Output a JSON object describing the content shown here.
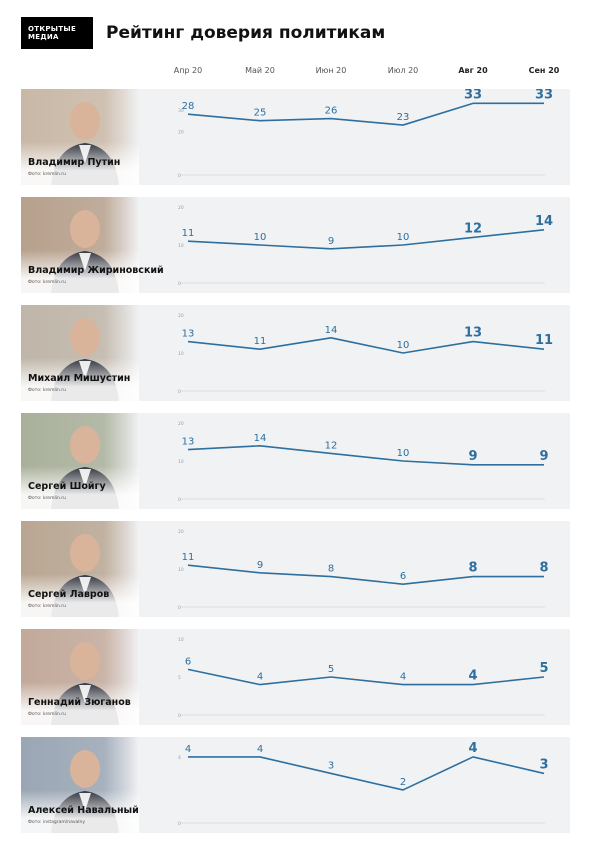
{
  "brand": {
    "line1": "ОТКРЫТЫЕ",
    "line2": "МЕДИА"
  },
  "title": "Рейтинг доверия политикам",
  "months": [
    "Апр 20",
    "Май 20",
    "Июн 20",
    "Июл 20",
    "Авг 20",
    "Сен 20"
  ],
  "colors": {
    "line": "#2e6f9e",
    "label": "#2e6f9e",
    "panel": "#f1f2f4"
  },
  "politicians": [
    {
      "name": "Владимир Путин",
      "credit": "Фото: kremlin.ru"
    },
    {
      "name": "Владимир Жириновский",
      "credit": "Фото: kremlin.ru"
    },
    {
      "name": "Михаил Мишустин",
      "credit": "Фото: kremlin.ru"
    },
    {
      "name": "Сергей Шойгу",
      "credit": "Фото: kremlin.ru"
    },
    {
      "name": "Сергей Лавров",
      "credit": "Фото: kremlin.ru"
    },
    {
      "name": "Геннадий Зюганов",
      "credit": "Фото: kremlin.ru"
    },
    {
      "name": "Алексей Навальный",
      "credit": "Фото: instagram/navalny"
    }
  ],
  "chart_data": [
    {
      "type": "line",
      "x": [
        "Апр 20",
        "Май 20",
        "Июн 20",
        "Июл 20",
        "Авг 20",
        "Сен 20"
      ],
      "series": [
        {
          "name": "Владимир Путин",
          "values": [
            28,
            25,
            26,
            23,
            33,
            33
          ]
        }
      ],
      "yticks": [
        "30",
        "20",
        "0"
      ],
      "ylim": [
        0,
        35
      ],
      "grid": false
    },
    {
      "type": "line",
      "x": [
        "Апр 20",
        "Май 20",
        "Июн 20",
        "Июл 20",
        "Авг 20",
        "Сен 20"
      ],
      "series": [
        {
          "name": "Владимир Жириновский",
          "values": [
            11,
            10,
            9,
            10,
            12,
            14
          ]
        }
      ],
      "yticks": [
        "20",
        "10",
        "0"
      ],
      "ylim": [
        0,
        20
      ],
      "grid": false
    },
    {
      "type": "line",
      "x": [
        "Апр 20",
        "Май 20",
        "Июн 20",
        "Июл 20",
        "Авг 20",
        "Сен 20"
      ],
      "series": [
        {
          "name": "Михаил Мишустин",
          "values": [
            13,
            11,
            14,
            10,
            13,
            11
          ]
        }
      ],
      "yticks": [
        "20",
        "10",
        "0"
      ],
      "ylim": [
        0,
        20
      ],
      "grid": false
    },
    {
      "type": "line",
      "x": [
        "Апр 20",
        "Май 20",
        "Июн 20",
        "Июл 20",
        "Авг 20",
        "Сен 20"
      ],
      "series": [
        {
          "name": "Сергей Шойгу",
          "values": [
            13,
            14,
            12,
            10,
            9,
            9
          ]
        }
      ],
      "yticks": [
        "20",
        "10",
        "0"
      ],
      "ylim": [
        0,
        20
      ],
      "grid": false
    },
    {
      "type": "line",
      "x": [
        "Апр 20",
        "Май 20",
        "Июн 20",
        "Июл 20",
        "Авг 20",
        "Сен 20"
      ],
      "series": [
        {
          "name": "Сергей Лавров",
          "values": [
            11,
            9,
            8,
            6,
            8,
            8
          ]
        }
      ],
      "yticks": [
        "20",
        "10",
        "0"
      ],
      "ylim": [
        0,
        20
      ],
      "grid": false
    },
    {
      "type": "line",
      "x": [
        "Апр 20",
        "Май 20",
        "Июн 20",
        "Июл 20",
        "Авг 20",
        "Сен 20"
      ],
      "series": [
        {
          "name": "Геннадий Зюганов",
          "values": [
            6,
            4,
            5,
            4,
            4,
            5
          ]
        }
      ],
      "yticks": [
        "10",
        "5",
        "0"
      ],
      "ylim": [
        0,
        10
      ],
      "grid": false
    },
    {
      "type": "line",
      "x": [
        "Апр 20",
        "Май 20",
        "Июн 20",
        "Июл 20",
        "Авг 20",
        "Сен 20"
      ],
      "series": [
        {
          "name": "Алексей Навальный",
          "values": [
            4,
            4,
            3,
            2,
            4,
            3
          ]
        }
      ],
      "yticks": [
        "4",
        "0"
      ],
      "ylim": [
        0,
        4.6
      ],
      "grid": false
    }
  ]
}
